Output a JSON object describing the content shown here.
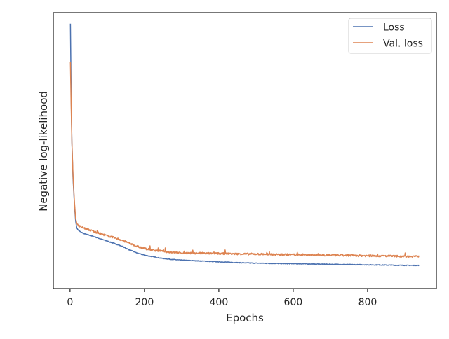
{
  "chart_data": {
    "type": "line",
    "title": "",
    "xlabel": "Epochs",
    "ylabel": "Negative log-likelihood",
    "xlim": [
      -45,
      985
    ],
    "ylim": [
      0.0,
      1.0
    ],
    "x_ticks": [
      0,
      200,
      400,
      600,
      800
    ],
    "y_ticks_visible": false,
    "grid": false,
    "legend_position": "upper right",
    "series": [
      {
        "name": "Loss",
        "color": "#4c72b0",
        "points": [
          [
            1,
            0.96
          ],
          [
            3,
            0.7
          ],
          [
            5,
            0.53
          ],
          [
            8,
            0.4
          ],
          [
            12,
            0.3
          ],
          [
            15,
            0.245
          ],
          [
            18,
            0.22
          ],
          [
            22,
            0.212
          ],
          [
            30,
            0.204
          ],
          [
            40,
            0.198
          ],
          [
            60,
            0.19
          ],
          [
            80,
            0.181
          ],
          [
            100,
            0.172
          ],
          [
            120,
            0.163
          ],
          [
            140,
            0.153
          ],
          [
            160,
            0.14
          ],
          [
            180,
            0.129
          ],
          [
            200,
            0.121
          ],
          [
            220,
            0.116
          ],
          [
            250,
            0.109
          ],
          [
            280,
            0.105
          ],
          [
            300,
            0.103
          ],
          [
            350,
            0.1
          ],
          [
            400,
            0.097
          ],
          [
            450,
            0.094
          ],
          [
            500,
            0.092
          ],
          [
            550,
            0.091
          ],
          [
            600,
            0.09
          ],
          [
            650,
            0.089
          ],
          [
            700,
            0.088
          ],
          [
            750,
            0.087
          ],
          [
            800,
            0.086
          ],
          [
            850,
            0.085
          ],
          [
            900,
            0.084
          ],
          [
            938,
            0.084
          ]
        ]
      },
      {
        "name": "Val. loss",
        "color": "#dd8452",
        "points": [
          [
            1,
            0.82
          ],
          [
            3,
            0.66
          ],
          [
            5,
            0.53
          ],
          [
            8,
            0.41
          ],
          [
            12,
            0.31
          ],
          [
            15,
            0.255
          ],
          [
            18,
            0.237
          ],
          [
            22,
            0.228
          ],
          [
            30,
            0.223
          ],
          [
            40,
            0.218
          ],
          [
            60,
            0.209
          ],
          [
            80,
            0.2
          ],
          [
            100,
            0.191
          ],
          [
            120,
            0.184
          ],
          [
            140,
            0.175
          ],
          [
            160,
            0.164
          ],
          [
            180,
            0.153
          ],
          [
            200,
            0.145
          ],
          [
            220,
            0.14
          ],
          [
            250,
            0.135
          ],
          [
            280,
            0.131
          ],
          [
            300,
            0.129
          ],
          [
            350,
            0.128
          ],
          [
            400,
            0.127
          ],
          [
            450,
            0.126
          ],
          [
            500,
            0.125
          ],
          [
            550,
            0.124
          ],
          [
            600,
            0.123
          ],
          [
            650,
            0.122
          ],
          [
            700,
            0.121
          ],
          [
            750,
            0.12
          ],
          [
            800,
            0.119
          ],
          [
            850,
            0.118
          ],
          [
            900,
            0.117
          ],
          [
            938,
            0.117
          ]
        ]
      }
    ]
  }
}
